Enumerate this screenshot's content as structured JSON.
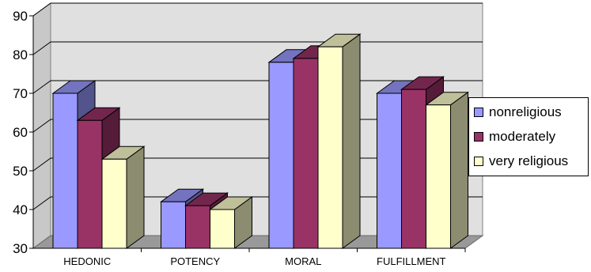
{
  "chart_data": {
    "type": "bar",
    "title": "",
    "xlabel": "",
    "ylabel": "",
    "categories": [
      "HEDONIC",
      "POTENCY",
      "MORAL",
      "FULFILLMENT"
    ],
    "series": [
      {
        "name": "nonreligious",
        "values": [
          70,
          42,
          78,
          70
        ],
        "color": "#9999ff"
      },
      {
        "name": "moderately",
        "values": [
          63,
          41,
          79,
          71
        ],
        "color": "#993366"
      },
      {
        "name": "very religious",
        "values": [
          53,
          40,
          82,
          67
        ],
        "color": "#ffffcc"
      }
    ],
    "ylim": [
      30,
      90
    ],
    "yticks": [
      30,
      40,
      50,
      60,
      70,
      80,
      90
    ],
    "grid": true,
    "legend": "right",
    "style": "3d"
  }
}
